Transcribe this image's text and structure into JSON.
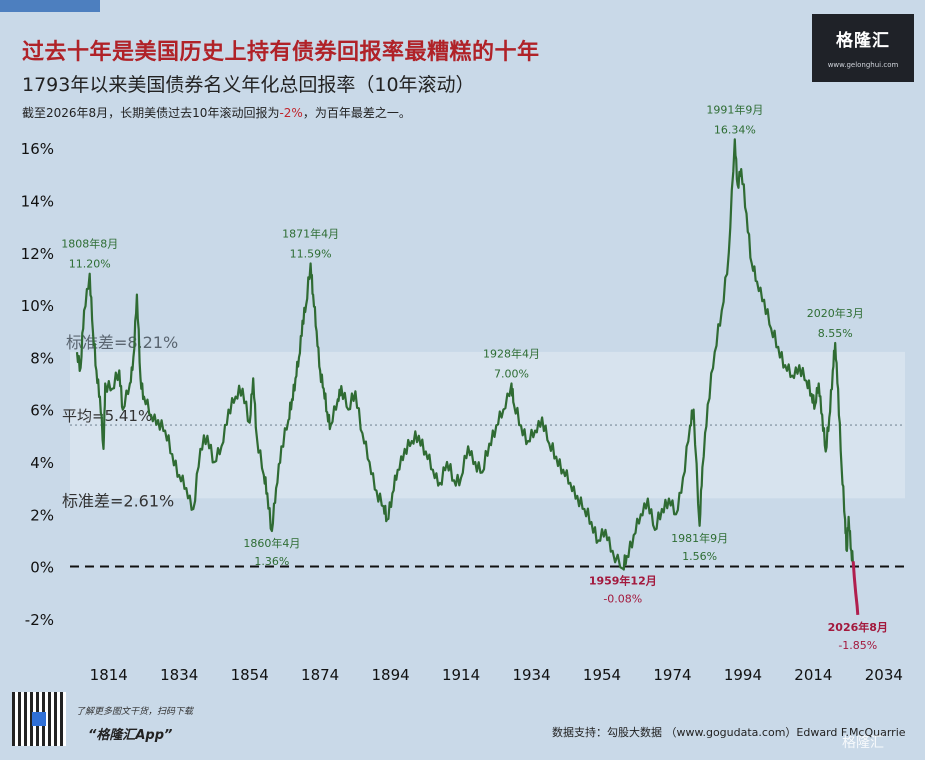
{
  "header": {
    "title": "过去十年是美国历史上持有债券回报率最糟糕的十年",
    "subtitle": "1793年以来美国债券名义年化总回报率（10年滚动）",
    "note_prefix": "截至2026年8月，长期美债过去10年滚动回报为",
    "note_value": "-2%",
    "note_suffix": "，为百年最差之一。"
  },
  "brand": {
    "name": "格隆汇",
    "url": "www.gelonghui.com"
  },
  "colors": {
    "background": "#c9d9e8",
    "band": "#dbe6f0",
    "line_green": "#2f6b33",
    "line_red": "#b01f4e",
    "label_green": "#2e6d33",
    "label_red": "#a3193d",
    "title_red": "#b02228"
  },
  "chart_data": {
    "type": "line",
    "title": "1793年以来美国债券名义年化总回报率（10年滚动）",
    "xlabel": "",
    "ylabel": "",
    "xlim": [
      1803,
      2040
    ],
    "ylim": [
      -3,
      17
    ],
    "x_ticks": [
      1814,
      1834,
      1854,
      1874,
      1894,
      1914,
      1934,
      1954,
      1974,
      1994,
      2014,
      2034
    ],
    "y_ticks": [
      {
        "value": -2,
        "label": "-2%"
      },
      {
        "value": 0,
        "label": "0%"
      },
      {
        "value": 2,
        "label": "2%"
      },
      {
        "value": 4,
        "label": "4%"
      },
      {
        "value": 6,
        "label": "6%"
      },
      {
        "value": 8,
        "label": "8%"
      },
      {
        "value": 10,
        "label": "10%"
      },
      {
        "value": 12,
        "label": "12%"
      },
      {
        "value": 14,
        "label": "14%"
      },
      {
        "value": 16,
        "label": "16%"
      }
    ],
    "grid": false,
    "legend": "none",
    "reference_lines": [
      {
        "value": 5.41,
        "label": "平均=5.41%",
        "style": "dotted"
      },
      {
        "value": 0,
        "label": "",
        "style": "dashed"
      }
    ],
    "band": {
      "from": 2.61,
      "to": 8.21,
      "upper_label": "标准差=8.21%",
      "lower_label": "标准差=2.61%"
    },
    "series": [
      {
        "color": "#2f6b33",
        "points": [
          [
            1805,
            8.2
          ],
          [
            1806,
            7.6
          ],
          [
            1807,
            9.8
          ],
          [
            1808.6,
            11.2
          ],
          [
            1809.5,
            9.0
          ],
          [
            1810.5,
            7.5
          ],
          [
            1811.5,
            6.5
          ],
          [
            1812.5,
            4.5
          ],
          [
            1813,
            7.0
          ],
          [
            1815,
            6.8
          ],
          [
            1817,
            7.5
          ],
          [
            1818,
            6.0
          ],
          [
            1820,
            7.0
          ],
          [
            1821,
            8.0
          ],
          [
            1822,
            10.4
          ],
          [
            1823,
            7.2
          ],
          [
            1824,
            6.5
          ],
          [
            1826,
            5.8
          ],
          [
            1828,
            5.6
          ],
          [
            1830,
            5.2
          ],
          [
            1832,
            4.3
          ],
          [
            1834,
            3.5
          ],
          [
            1836,
            3.0
          ],
          [
            1838,
            2.2
          ],
          [
            1840,
            4.5
          ],
          [
            1842,
            5.0
          ],
          [
            1844,
            4.0
          ],
          [
            1846,
            4.6
          ],
          [
            1848,
            6.0
          ],
          [
            1850,
            6.5
          ],
          [
            1852,
            6.8
          ],
          [
            1854,
            5.5
          ],
          [
            1855,
            7.2
          ],
          [
            1856,
            5.0
          ],
          [
            1858,
            3.5
          ],
          [
            1859,
            2.8
          ],
          [
            1860.3,
            1.36
          ],
          [
            1861.5,
            3.0
          ],
          [
            1863,
            4.6
          ],
          [
            1865,
            5.6
          ],
          [
            1866,
            6.4
          ],
          [
            1867,
            7.2
          ],
          [
            1868,
            8.0
          ],
          [
            1869,
            9.4
          ],
          [
            1870,
            10.0
          ],
          [
            1871.3,
            11.59
          ],
          [
            1872,
            10.4
          ],
          [
            1873,
            9.0
          ],
          [
            1874,
            7.5
          ],
          [
            1875,
            6.8
          ],
          [
            1876,
            5.9
          ],
          [
            1877,
            5.4
          ],
          [
            1879,
            6.4
          ],
          [
            1880,
            6.9
          ],
          [
            1882,
            6.0
          ],
          [
            1884,
            6.7
          ],
          [
            1886,
            5.1
          ],
          [
            1888,
            4.0
          ],
          [
            1890,
            2.9
          ],
          [
            1892,
            2.3
          ],
          [
            1893,
            1.8
          ],
          [
            1894.5,
            2.8
          ],
          [
            1896,
            3.7
          ],
          [
            1898,
            4.5
          ],
          [
            1900,
            4.8
          ],
          [
            1902,
            5.0
          ],
          [
            1904,
            4.4
          ],
          [
            1906,
            3.7
          ],
          [
            1908,
            3.2
          ],
          [
            1910,
            4.0
          ],
          [
            1912,
            3.3
          ],
          [
            1914,
            3.4
          ],
          [
            1916,
            4.6
          ],
          [
            1918,
            4.0
          ],
          [
            1920,
            3.6
          ],
          [
            1922,
            4.7
          ],
          [
            1924,
            5.4
          ],
          [
            1926,
            6.0
          ],
          [
            1928.3,
            7.0
          ],
          [
            1929,
            6.2
          ],
          [
            1931,
            5.4
          ],
          [
            1933,
            4.8
          ],
          [
            1935,
            5.2
          ],
          [
            1937,
            5.7
          ],
          [
            1939,
            4.7
          ],
          [
            1941,
            4.2
          ],
          [
            1943,
            3.7
          ],
          [
            1945,
            3.2
          ],
          [
            1947,
            2.7
          ],
          [
            1949,
            2.2
          ],
          [
            1951,
            1.7
          ],
          [
            1953,
            1.0
          ],
          [
            1955,
            1.4
          ],
          [
            1957,
            0.6
          ],
          [
            1959.9,
            -0.08
          ],
          [
            1961,
            0.4
          ],
          [
            1963,
            1.2
          ],
          [
            1965,
            2.0
          ],
          [
            1967,
            2.6
          ],
          [
            1969,
            1.4
          ],
          [
            1971,
            2.2
          ],
          [
            1973,
            2.6
          ],
          [
            1975,
            2.0
          ],
          [
            1977,
            3.4
          ],
          [
            1979,
            5.4
          ],
          [
            1980,
            6.0
          ],
          [
            1981.7,
            1.56
          ],
          [
            1982.5,
            3.8
          ],
          [
            1984,
            6.2
          ],
          [
            1986,
            8.2
          ],
          [
            1988,
            9.8
          ],
          [
            1990,
            12.0
          ],
          [
            1991.7,
            16.34
          ],
          [
            1992.5,
            14.6
          ],
          [
            1993.5,
            15.2
          ],
          [
            1995,
            13.5
          ],
          [
            1996.5,
            11.6
          ],
          [
            1998,
            10.9
          ],
          [
            2000,
            10.2
          ],
          [
            2002,
            9.1
          ],
          [
            2004,
            8.4
          ],
          [
            2006,
            7.7
          ],
          [
            2008,
            7.3
          ],
          [
            2010,
            7.7
          ],
          [
            2012,
            7.1
          ],
          [
            2013.5,
            6.6
          ],
          [
            2014.5,
            6.2
          ],
          [
            2015.5,
            7.0
          ],
          [
            2016.5,
            5.8
          ],
          [
            2017.5,
            4.4
          ],
          [
            2018.5,
            5.7
          ],
          [
            2019.5,
            7.5
          ],
          [
            2020.2,
            8.55
          ],
          [
            2021,
            6.8
          ],
          [
            2022,
            3.8
          ],
          [
            2023,
            1.8
          ],
          [
            2023.5,
            0.6
          ],
          [
            2024,
            1.9
          ],
          [
            2024.8,
            0.6
          ],
          [
            2025.3,
            0.2
          ]
        ]
      },
      {
        "color": "#b01f4e",
        "points": [
          [
            2025.3,
            0.2
          ],
          [
            2025.6,
            -0.4
          ],
          [
            2026,
            -1.0
          ],
          [
            2026.4,
            -1.5
          ],
          [
            2026.6,
            -1.85
          ]
        ]
      }
    ],
    "annotations": [
      {
        "x": 1808.6,
        "y": 11.2,
        "date": "1808年8月",
        "value": "11.20%",
        "color": "green",
        "pos": "above"
      },
      {
        "x": 1860.3,
        "y": 1.36,
        "date": "1860年4月",
        "value": "1.36%",
        "color": "green",
        "pos": "below"
      },
      {
        "x": 1871.3,
        "y": 11.59,
        "date": "1871年4月",
        "value": "11.59%",
        "color": "green",
        "pos": "above"
      },
      {
        "x": 1928.3,
        "y": 7.0,
        "date": "1928年4月",
        "value": "7.00%",
        "color": "green",
        "pos": "above"
      },
      {
        "x": 1959.9,
        "y": -0.08,
        "date": "1959年12月",
        "value": "-0.08%",
        "color": "red",
        "pos": "below"
      },
      {
        "x": 1981.7,
        "y": 1.56,
        "date": "1981年9月",
        "value": "1.56%",
        "color": "green",
        "pos": "below"
      },
      {
        "x": 1991.7,
        "y": 16.34,
        "date": "1991年9月",
        "value": "16.34%",
        "color": "green",
        "pos": "above"
      },
      {
        "x": 2020.2,
        "y": 8.55,
        "date": "2020年3月",
        "value": "8.55%",
        "color": "green",
        "pos": "above"
      },
      {
        "x": 2026.6,
        "y": -1.85,
        "date": "2026年8月",
        "value": "-1.85%",
        "color": "red",
        "pos": "below"
      }
    ]
  },
  "footer": {
    "cta": "了解更多图文干货，扫码下载",
    "app_name": "“格隆汇App”",
    "source": "数据支持：勾股大数据 （www.gogudata.com）Edward F.McQuarrie",
    "watermark": "格隆汇"
  }
}
